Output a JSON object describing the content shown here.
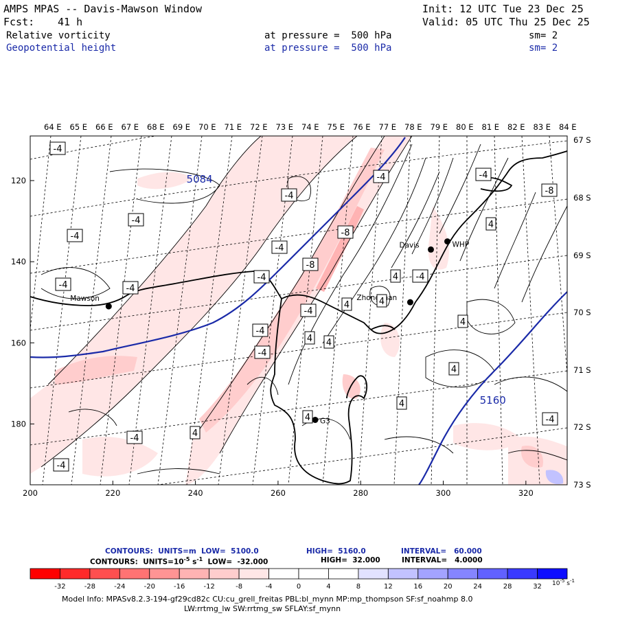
{
  "header": {
    "title": "AMPS MPAS -- Davis-Mawson Window",
    "init": "Init: 12 UTC Tue 23 Dec 25",
    "fcst_label": "Fcst:",
    "fcst_value": "41 h",
    "valid": "Valid: 05 UTC Thu 25 Dec 25"
  },
  "fields": [
    {
      "name": "Relative vorticity",
      "level": "at pressure =  500 hPa",
      "smooth": "sm= 2",
      "color": "#000000"
    },
    {
      "name": "Geopotential height",
      "level": "at pressure =  500 hPa",
      "smooth": "sm= 2",
      "color": "#1a2aa8"
    }
  ],
  "map": {
    "top_lon_labels": [
      "64 E",
      "65 E",
      "66 E",
      "67 E",
      "68 E",
      "69 E",
      "70 E",
      "71 E",
      "72 E",
      "73 E",
      "74 E",
      "75 E",
      "76 E",
      "77 E",
      "78 E",
      "79 E",
      "80 E",
      "81 E",
      "82 E",
      "83 E",
      "84 E"
    ],
    "right_lat_labels": [
      "67 S",
      "68 S",
      "69 S",
      "70 S",
      "71 S",
      "72 S",
      "73 S"
    ],
    "x_ticks": [
      "200",
      "220",
      "240",
      "260",
      "280",
      "300",
      "320"
    ],
    "y_ticks": [
      "120",
      "140",
      "160",
      "180"
    ],
    "stations": [
      {
        "name": "Mawson",
        "x": 219,
        "y": 151
      },
      {
        "name": "Davis",
        "x": 297,
        "y": 137
      },
      {
        "name": "WHP",
        "x": 301,
        "y": 135
      },
      {
        "name": "Zhongshan",
        "x": 292,
        "y": 150
      },
      {
        "name": "G3",
        "x": 269,
        "y": 179
      }
    ],
    "height_labels": [
      {
        "text": "5084",
        "x": 241,
        "y": 120.5
      },
      {
        "text": "5160",
        "x": 312,
        "y": 175
      }
    ],
    "vort_labels": [
      "-4",
      "-4",
      "-4",
      "-4",
      "-4",
      "-4",
      "-4",
      "-4",
      "-4",
      "-4",
      "-4",
      "-4",
      "-4",
      "-4",
      "-4",
      "-4",
      "-4",
      "-8",
      "-8",
      "-8",
      "4",
      "4",
      "4",
      "4",
      "4",
      "4",
      "4",
      "4",
      "4",
      "4",
      "4"
    ],
    "colors": {
      "height_contour": "#1a2aa8",
      "coast": "#000000"
    }
  },
  "footer": {
    "contours1": {
      "prefix": "CONTOURS:  UNITS=m  LOW=  5100.0",
      "high": "HIGH=  5160.0",
      "interval": "INTERVAL=   60.000"
    },
    "contours2": {
      "prefix": "CONTOURS:  UNITS=10",
      "exp": "-5",
      "suffix": " s",
      "exp2": "-1",
      "low": "  LOW=  -32.000",
      "high": "HIGH=  32.000",
      "interval": "INTERVAL=   4.0000"
    },
    "colorbar": {
      "labels": [
        "-32",
        "-28",
        "-24",
        "-20",
        "-16",
        "-12",
        "-8",
        "-4",
        "0",
        "4",
        "8",
        "12",
        "16",
        "20",
        "24",
        "28",
        "32"
      ],
      "colors": [
        "#ff0000",
        "#ff2a2a",
        "#ff4f4f",
        "#ff7373",
        "#ff9494",
        "#ffb3b3",
        "#ffcdcd",
        "#ffe6e6",
        "#ffffff",
        "#ffffff",
        "#e2e2ff",
        "#c2c2ff",
        "#a3a3ff",
        "#8585ff",
        "#6161ff",
        "#3a3aff",
        "#0e0eff"
      ],
      "unit": "10",
      "unit_exp": "-5",
      "unit_s": " s",
      "unit_s_exp": "-1"
    },
    "model_info": "Model Info: MPASv8.2.3-194-gf29cd82c CU:cu_grell_freitas PBL:bl_mynn MP:mp_thompson SF:sf_noahmp 8.0",
    "model_info2": "LW:rrtmg_lw SW:rrtmg_sw SFLAY:sf_mynn"
  }
}
